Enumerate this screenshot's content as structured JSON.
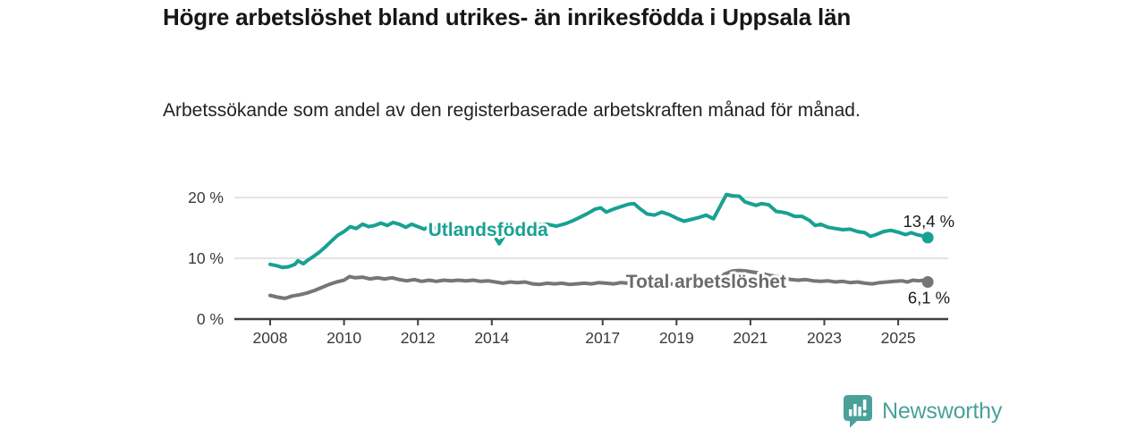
{
  "title": "Högre arbetslöshet bland utrikes- än inrikesfödda i Uppsala län",
  "subtitle": "Arbetssökande som andel av den registerbaserade arbetskraften månad för månad.",
  "branding": {
    "wordmark": "Newsworthy",
    "logo_icon": "bar-chart-speech-bubble-icon",
    "color": "#4BA19A"
  },
  "colors": {
    "foreign_born_line": "#18A193",
    "total_line": "#767676",
    "total_label": "#6b6b6b",
    "grid": "#DBDBDB",
    "axis_line": "#3F3F3F",
    "axis_text": "#3a3a3a",
    "value_label": "#1c1c1c",
    "background": "#ffffff"
  },
  "chart_data": {
    "type": "line",
    "title": "Högre arbetslöshet bland utrikes- än inrikesfödda i Uppsala län",
    "subtitle": "Arbetssökande som andel av den registerbaserade arbetskraften månad för månad.",
    "unit": "%",
    "grid": "horizontal-only",
    "legend": "inline-labels-on-lines",
    "x_axis": {
      "ticks": [
        2008,
        2010,
        2012,
        2014,
        2017,
        2019,
        2021,
        2023,
        2025
      ],
      "range": [
        2007.0,
        2026.4
      ]
    },
    "y_axis": {
      "ticks": [
        {
          "value": 0,
          "label": "0 %"
        },
        {
          "value": 10,
          "label": "10 %"
        },
        {
          "value": 20,
          "label": "20 %"
        }
      ],
      "range": [
        0,
        21.5
      ]
    },
    "series": [
      {
        "name": "Utlandsfödda",
        "color": "#18A193",
        "end_value_label": "13,4 %",
        "last_value": 13.4,
        "inline_label": {
          "text": "Utlandsfödda",
          "year": 2013.9,
          "value": 14.7
        },
        "points": [
          [
            2008.0,
            9.0
          ],
          [
            2008.17,
            8.8
          ],
          [
            2008.33,
            8.5
          ],
          [
            2008.5,
            8.6
          ],
          [
            2008.67,
            9.0
          ],
          [
            2008.75,
            9.6
          ],
          [
            2008.9,
            9.1
          ],
          [
            2009.0,
            9.6
          ],
          [
            2009.17,
            10.3
          ],
          [
            2009.33,
            11.0
          ],
          [
            2009.5,
            11.9
          ],
          [
            2009.67,
            12.9
          ],
          [
            2009.83,
            13.8
          ],
          [
            2010.0,
            14.4
          ],
          [
            2010.17,
            15.2
          ],
          [
            2010.33,
            14.9
          ],
          [
            2010.5,
            15.6
          ],
          [
            2010.67,
            15.2
          ],
          [
            2010.83,
            15.4
          ],
          [
            2011.0,
            15.8
          ],
          [
            2011.17,
            15.4
          ],
          [
            2011.33,
            15.9
          ],
          [
            2011.5,
            15.6
          ],
          [
            2011.67,
            15.1
          ],
          [
            2011.83,
            15.6
          ],
          [
            2012.0,
            15.2
          ],
          [
            2012.17,
            14.8
          ],
          [
            2012.33,
            15.3
          ],
          [
            2012.5,
            14.9
          ],
          [
            2012.67,
            15.2
          ],
          [
            2012.83,
            15.0
          ],
          [
            2013.0,
            15.1
          ],
          [
            2013.25,
            15.0
          ],
          [
            2013.5,
            15.1
          ],
          [
            2013.75,
            14.9
          ],
          [
            2014.0,
            14.4
          ],
          [
            2014.2,
            12.4
          ],
          [
            2014.4,
            14.3
          ],
          [
            2014.6,
            14.9
          ],
          [
            2014.8,
            15.1
          ],
          [
            2015.0,
            15.2
          ],
          [
            2015.25,
            15.5
          ],
          [
            2015.5,
            15.6
          ],
          [
            2015.75,
            15.3
          ],
          [
            2016.0,
            15.7
          ],
          [
            2016.2,
            16.2
          ],
          [
            2016.4,
            16.8
          ],
          [
            2016.6,
            17.4
          ],
          [
            2016.8,
            18.1
          ],
          [
            2016.95,
            18.3
          ],
          [
            2017.1,
            17.6
          ],
          [
            2017.3,
            18.1
          ],
          [
            2017.5,
            18.5
          ],
          [
            2017.7,
            18.9
          ],
          [
            2017.85,
            19.0
          ],
          [
            2018.0,
            18.2
          ],
          [
            2018.2,
            17.3
          ],
          [
            2018.4,
            17.1
          ],
          [
            2018.6,
            17.6
          ],
          [
            2018.8,
            17.2
          ],
          [
            2019.0,
            16.6
          ],
          [
            2019.2,
            16.1
          ],
          [
            2019.4,
            16.4
          ],
          [
            2019.6,
            16.7
          ],
          [
            2019.8,
            17.1
          ],
          [
            2020.0,
            16.5
          ],
          [
            2020.2,
            18.8
          ],
          [
            2020.35,
            20.5
          ],
          [
            2020.5,
            20.3
          ],
          [
            2020.7,
            20.2
          ],
          [
            2020.85,
            19.3
          ],
          [
            2021.0,
            19.0
          ],
          [
            2021.15,
            18.7
          ],
          [
            2021.3,
            19.0
          ],
          [
            2021.5,
            18.8
          ],
          [
            2021.7,
            17.7
          ],
          [
            2021.85,
            17.6
          ],
          [
            2022.0,
            17.4
          ],
          [
            2022.2,
            16.9
          ],
          [
            2022.4,
            16.9
          ],
          [
            2022.6,
            16.2
          ],
          [
            2022.75,
            15.4
          ],
          [
            2022.9,
            15.6
          ],
          [
            2023.1,
            15.1
          ],
          [
            2023.3,
            14.9
          ],
          [
            2023.5,
            14.7
          ],
          [
            2023.7,
            14.8
          ],
          [
            2023.9,
            14.4
          ],
          [
            2024.1,
            14.2
          ],
          [
            2024.25,
            13.6
          ],
          [
            2024.4,
            13.9
          ],
          [
            2024.6,
            14.4
          ],
          [
            2024.8,
            14.6
          ],
          [
            2025.0,
            14.3
          ],
          [
            2025.2,
            13.9
          ],
          [
            2025.35,
            14.2
          ],
          [
            2025.5,
            13.9
          ],
          [
            2025.65,
            13.7
          ],
          [
            2025.8,
            13.4
          ]
        ]
      },
      {
        "name": "Total arbetslöshet",
        "color": "#767676",
        "end_value_label": "6,1 %",
        "last_value": 6.1,
        "inline_label": {
          "text": "Total arbetslöshet",
          "year": 2019.8,
          "value": 6.15
        },
        "points": [
          [
            2008.0,
            3.9
          ],
          [
            2008.2,
            3.6
          ],
          [
            2008.4,
            3.4
          ],
          [
            2008.6,
            3.8
          ],
          [
            2008.8,
            4.0
          ],
          [
            2009.0,
            4.3
          ],
          [
            2009.2,
            4.7
          ],
          [
            2009.4,
            5.2
          ],
          [
            2009.6,
            5.7
          ],
          [
            2009.8,
            6.1
          ],
          [
            2010.0,
            6.4
          ],
          [
            2010.15,
            7.0
          ],
          [
            2010.3,
            6.8
          ],
          [
            2010.5,
            6.9
          ],
          [
            2010.7,
            6.6
          ],
          [
            2010.9,
            6.8
          ],
          [
            2011.1,
            6.6
          ],
          [
            2011.3,
            6.8
          ],
          [
            2011.5,
            6.5
          ],
          [
            2011.7,
            6.3
          ],
          [
            2011.9,
            6.5
          ],
          [
            2012.1,
            6.2
          ],
          [
            2012.3,
            6.4
          ],
          [
            2012.5,
            6.2
          ],
          [
            2012.7,
            6.4
          ],
          [
            2012.9,
            6.3
          ],
          [
            2013.1,
            6.4
          ],
          [
            2013.3,
            6.3
          ],
          [
            2013.5,
            6.4
          ],
          [
            2013.7,
            6.2
          ],
          [
            2013.9,
            6.3
          ],
          [
            2014.1,
            6.1
          ],
          [
            2014.3,
            5.9
          ],
          [
            2014.5,
            6.1
          ],
          [
            2014.7,
            6.0
          ],
          [
            2014.9,
            6.1
          ],
          [
            2015.1,
            5.8
          ],
          [
            2015.3,
            5.7
          ],
          [
            2015.5,
            5.9
          ],
          [
            2015.7,
            5.8
          ],
          [
            2015.9,
            5.9
          ],
          [
            2016.1,
            5.7
          ],
          [
            2016.3,
            5.8
          ],
          [
            2016.5,
            5.9
          ],
          [
            2016.7,
            5.8
          ],
          [
            2016.9,
            6.0
          ],
          [
            2017.1,
            5.9
          ],
          [
            2017.3,
            5.8
          ],
          [
            2017.5,
            6.0
          ],
          [
            2017.7,
            5.9
          ],
          [
            2017.9,
            6.0
          ],
          [
            2018.1,
            5.8
          ],
          [
            2018.3,
            5.7
          ],
          [
            2018.5,
            5.8
          ],
          [
            2018.7,
            5.7
          ],
          [
            2018.9,
            5.8
          ],
          [
            2019.1,
            5.6
          ],
          [
            2019.3,
            5.7
          ],
          [
            2019.5,
            5.7
          ],
          [
            2019.7,
            5.8
          ],
          [
            2019.9,
            5.9
          ],
          [
            2020.1,
            6.2
          ],
          [
            2020.3,
            7.4
          ],
          [
            2020.5,
            7.9
          ],
          [
            2020.7,
            8.0
          ],
          [
            2020.9,
            7.9
          ],
          [
            2021.1,
            7.7
          ],
          [
            2021.3,
            7.5
          ],
          [
            2021.5,
            7.2
          ],
          [
            2021.7,
            7.0
          ],
          [
            2021.9,
            6.8
          ],
          [
            2022.1,
            6.5
          ],
          [
            2022.3,
            6.4
          ],
          [
            2022.5,
            6.5
          ],
          [
            2022.7,
            6.3
          ],
          [
            2022.9,
            6.2
          ],
          [
            2023.1,
            6.3
          ],
          [
            2023.3,
            6.1
          ],
          [
            2023.5,
            6.2
          ],
          [
            2023.7,
            6.0
          ],
          [
            2023.9,
            6.1
          ],
          [
            2024.1,
            5.9
          ],
          [
            2024.3,
            5.8
          ],
          [
            2024.5,
            6.0
          ],
          [
            2024.7,
            6.1
          ],
          [
            2024.9,
            6.2
          ],
          [
            2025.1,
            6.3
          ],
          [
            2025.25,
            6.1
          ],
          [
            2025.4,
            6.4
          ],
          [
            2025.55,
            6.3
          ],
          [
            2025.7,
            6.4
          ],
          [
            2025.8,
            6.1
          ]
        ]
      }
    ]
  }
}
